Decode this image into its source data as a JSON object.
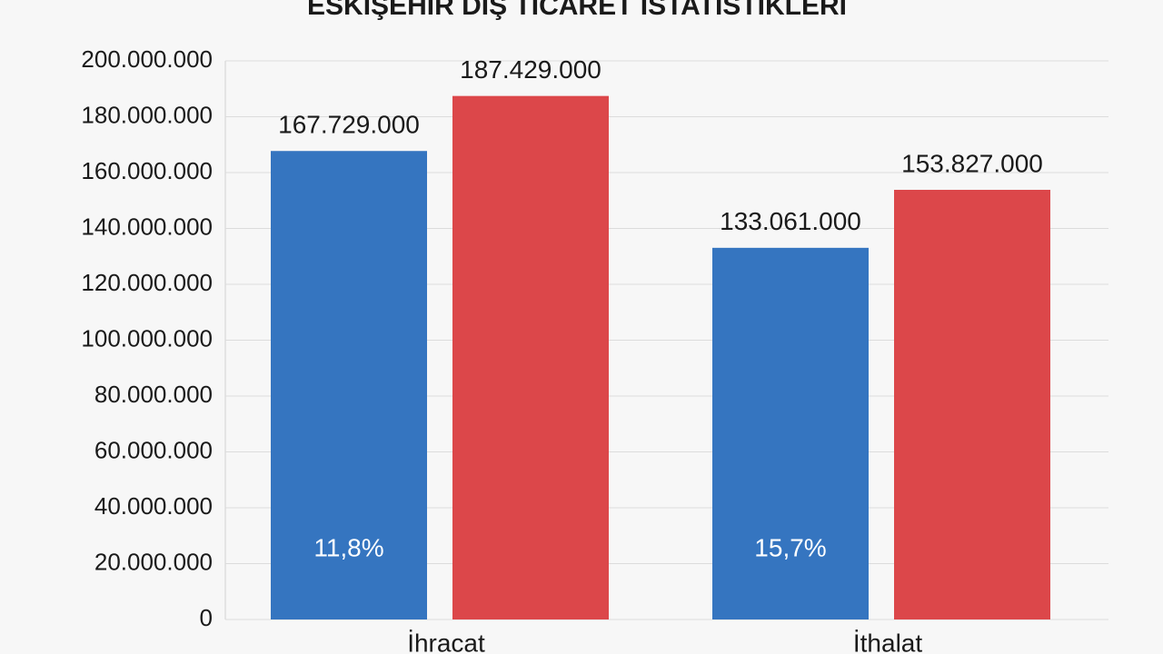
{
  "chart_data": {
    "type": "bar",
    "title": "ESKİŞEHİR DIŞ TİCARET İSTATİSTİKLERİ",
    "categories": [
      "İhracat",
      "İthalat"
    ],
    "series": [
      {
        "color": "#3575c0",
        "values": [
          167729000,
          133061000
        ],
        "value_labels": [
          "167.729.000",
          "133.061.000"
        ]
      },
      {
        "color": "#dc474a",
        "values": [
          187429000,
          153827000
        ],
        "value_labels": [
          "187.429.000",
          "153.827.000"
        ]
      }
    ],
    "annotations": [
      "11,8%",
      "15,7%"
    ],
    "ylim": [
      0,
      200000000
    ],
    "yticks": [
      0,
      {
        "value": 20000000,
        "label": "20.000.000"
      },
      {
        "value": 40000000,
        "label": "40.000.000"
      },
      {
        "value": 60000000,
        "label": "60.000.000"
      },
      {
        "value": 80000000,
        "label": "80.000.000"
      },
      {
        "value": 100000000,
        "label": "100.000.000"
      },
      {
        "value": 120000000,
        "label": "120.000.000"
      },
      {
        "value": 140000000,
        "label": "140.000.000"
      },
      {
        "value": 160000000,
        "label": "160.000.000"
      },
      {
        "value": 180000000,
        "label": "180.000.000"
      },
      {
        "value": 200000000,
        "label": "200.000.000"
      }
    ],
    "grid": true
  }
}
